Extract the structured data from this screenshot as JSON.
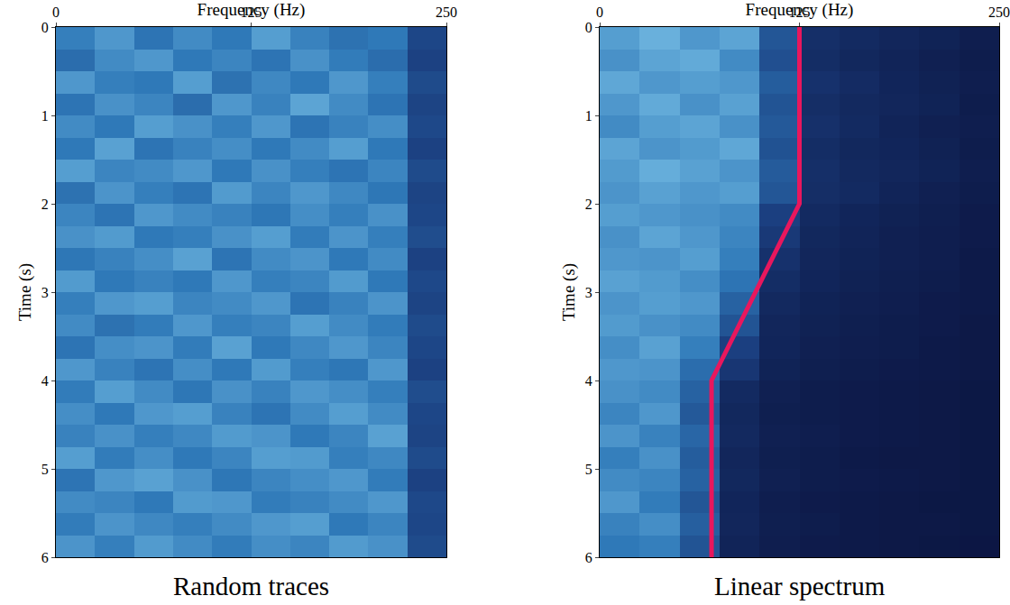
{
  "chart_data": [
    {
      "type": "heatmap",
      "caption": "Random traces",
      "x_label": "Frequency (Hz)",
      "y_label": "Time (s)",
      "xlim": [
        0,
        250
      ],
      "xticks": [
        0,
        125,
        250
      ],
      "ylim": [
        6,
        0
      ],
      "yticks": [
        0,
        1,
        2,
        3,
        4,
        5,
        6
      ],
      "grid": false,
      "zlim": [
        0,
        1
      ],
      "x": [
        12.5,
        37.5,
        62.5,
        87.5,
        112.5,
        137.5,
        162.5,
        187.5,
        212.5,
        237.5
      ],
      "y": [
        0.125,
        0.375,
        0.625,
        0.875,
        1.125,
        1.375,
        1.625,
        1.875,
        2.125,
        2.375,
        2.625,
        2.875,
        3.125,
        3.375,
        3.625,
        3.875,
        4.125,
        4.375,
        4.625,
        4.875,
        5.125,
        5.375,
        5.625,
        5.875
      ],
      "z": [
        [
          0.62,
          0.7,
          0.58,
          0.66,
          0.6,
          0.72,
          0.63,
          0.57,
          0.6,
          0.38
        ],
        [
          0.55,
          0.66,
          0.7,
          0.6,
          0.64,
          0.58,
          0.68,
          0.61,
          0.55,
          0.36
        ],
        [
          0.7,
          0.62,
          0.6,
          0.72,
          0.57,
          0.65,
          0.6,
          0.7,
          0.62,
          0.4
        ],
        [
          0.58,
          0.68,
          0.64,
          0.55,
          0.7,
          0.63,
          0.74,
          0.66,
          0.58,
          0.37
        ],
        [
          0.66,
          0.6,
          0.72,
          0.68,
          0.62,
          0.7,
          0.58,
          0.63,
          0.67,
          0.39
        ],
        [
          0.6,
          0.73,
          0.58,
          0.63,
          0.67,
          0.6,
          0.66,
          0.72,
          0.6,
          0.36
        ],
        [
          0.72,
          0.64,
          0.66,
          0.7,
          0.6,
          0.68,
          0.62,
          0.58,
          0.64,
          0.4
        ],
        [
          0.57,
          0.69,
          0.62,
          0.58,
          0.71,
          0.64,
          0.7,
          0.65,
          0.59,
          0.37
        ],
        [
          0.64,
          0.58,
          0.7,
          0.66,
          0.63,
          0.59,
          0.67,
          0.62,
          0.68,
          0.38
        ],
        [
          0.68,
          0.71,
          0.6,
          0.62,
          0.68,
          0.72,
          0.61,
          0.69,
          0.62,
          0.41
        ],
        [
          0.59,
          0.63,
          0.67,
          0.73,
          0.58,
          0.66,
          0.69,
          0.6,
          0.66,
          0.36
        ],
        [
          0.71,
          0.6,
          0.63,
          0.6,
          0.7,
          0.62,
          0.64,
          0.71,
          0.6,
          0.39
        ],
        [
          0.62,
          0.7,
          0.72,
          0.64,
          0.66,
          0.7,
          0.58,
          0.63,
          0.69,
          0.37
        ],
        [
          0.66,
          0.57,
          0.61,
          0.7,
          0.62,
          0.64,
          0.72,
          0.66,
          0.61,
          0.4
        ],
        [
          0.58,
          0.67,
          0.69,
          0.61,
          0.73,
          0.6,
          0.65,
          0.7,
          0.64,
          0.38
        ],
        [
          0.7,
          0.63,
          0.58,
          0.67,
          0.6,
          0.71,
          0.62,
          0.59,
          0.7,
          0.36
        ],
        [
          0.61,
          0.72,
          0.66,
          0.59,
          0.68,
          0.63,
          0.7,
          0.67,
          0.62,
          0.41
        ],
        [
          0.67,
          0.6,
          0.7,
          0.72,
          0.63,
          0.58,
          0.66,
          0.72,
          0.66,
          0.38
        ],
        [
          0.63,
          0.68,
          0.62,
          0.65,
          0.71,
          0.69,
          0.6,
          0.64,
          0.73,
          0.37
        ],
        [
          0.72,
          0.61,
          0.67,
          0.6,
          0.64,
          0.72,
          0.71,
          0.62,
          0.65,
          0.4
        ],
        [
          0.58,
          0.7,
          0.73,
          0.68,
          0.59,
          0.64,
          0.67,
          0.7,
          0.61,
          0.36
        ],
        [
          0.66,
          0.64,
          0.6,
          0.71,
          0.7,
          0.61,
          0.63,
          0.66,
          0.7,
          0.39
        ],
        [
          0.61,
          0.69,
          0.65,
          0.62,
          0.66,
          0.7,
          0.72,
          0.6,
          0.64,
          0.38
        ],
        [
          0.69,
          0.62,
          0.71,
          0.66,
          0.61,
          0.67,
          0.64,
          0.71,
          0.68,
          0.4
        ]
      ]
    },
    {
      "type": "heatmap",
      "caption": "Linear spectrum",
      "x_label": "Frequency (Hz)",
      "y_label": "Time (s)",
      "xlim": [
        0,
        250
      ],
      "xticks": [
        0,
        125,
        250
      ],
      "ylim": [
        6,
        0
      ],
      "yticks": [
        0,
        1,
        2,
        3,
        4,
        5,
        6
      ],
      "grid": false,
      "zlim": [
        0,
        1
      ],
      "x": [
        12.5,
        37.5,
        62.5,
        87.5,
        112.5,
        137.5,
        162.5,
        187.5,
        212.5,
        237.5
      ],
      "y": [
        0.125,
        0.375,
        0.625,
        0.875,
        1.125,
        1.375,
        1.625,
        1.875,
        2.125,
        2.375,
        2.625,
        2.875,
        3.125,
        3.375,
        3.625,
        3.875,
        4.125,
        4.375,
        4.625,
        4.875,
        5.125,
        5.375,
        5.625,
        5.875
      ],
      "z": [
        [
          0.72,
          0.78,
          0.7,
          0.74,
          0.45,
          0.22,
          0.18,
          0.15,
          0.12,
          0.08
        ],
        [
          0.68,
          0.74,
          0.76,
          0.66,
          0.42,
          0.2,
          0.16,
          0.13,
          0.1,
          0.07
        ],
        [
          0.75,
          0.7,
          0.72,
          0.7,
          0.48,
          0.24,
          0.19,
          0.14,
          0.11,
          0.08
        ],
        [
          0.7,
          0.76,
          0.68,
          0.73,
          0.44,
          0.21,
          0.17,
          0.15,
          0.12,
          0.07
        ],
        [
          0.66,
          0.72,
          0.74,
          0.68,
          0.46,
          0.23,
          0.18,
          0.13,
          0.1,
          0.08
        ],
        [
          0.74,
          0.69,
          0.71,
          0.75,
          0.43,
          0.2,
          0.16,
          0.14,
          0.11,
          0.07
        ],
        [
          0.71,
          0.77,
          0.73,
          0.69,
          0.47,
          0.22,
          0.17,
          0.15,
          0.12,
          0.08
        ],
        [
          0.69,
          0.73,
          0.7,
          0.72,
          0.45,
          0.21,
          0.18,
          0.13,
          0.1,
          0.07
        ],
        [
          0.72,
          0.7,
          0.68,
          0.66,
          0.35,
          0.18,
          0.14,
          0.11,
          0.09,
          0.06
        ],
        [
          0.68,
          0.74,
          0.7,
          0.64,
          0.3,
          0.16,
          0.13,
          0.1,
          0.08,
          0.06
        ],
        [
          0.7,
          0.69,
          0.72,
          0.62,
          0.24,
          0.15,
          0.12,
          0.1,
          0.08,
          0.05
        ],
        [
          0.73,
          0.71,
          0.67,
          0.58,
          0.2,
          0.14,
          0.11,
          0.09,
          0.07,
          0.05
        ],
        [
          0.69,
          0.72,
          0.7,
          0.5,
          0.17,
          0.12,
          0.1,
          0.08,
          0.06,
          0.05
        ],
        [
          0.71,
          0.68,
          0.66,
          0.44,
          0.15,
          0.11,
          0.09,
          0.07,
          0.06,
          0.04
        ],
        [
          0.67,
          0.73,
          0.62,
          0.35,
          0.14,
          0.1,
          0.08,
          0.07,
          0.05,
          0.04
        ],
        [
          0.7,
          0.69,
          0.55,
          0.28,
          0.12,
          0.09,
          0.07,
          0.06,
          0.05,
          0.04
        ],
        [
          0.68,
          0.66,
          0.5,
          0.18,
          0.1,
          0.07,
          0.06,
          0.05,
          0.04,
          0.03
        ],
        [
          0.64,
          0.7,
          0.46,
          0.16,
          0.09,
          0.07,
          0.06,
          0.05,
          0.04,
          0.03
        ],
        [
          0.69,
          0.63,
          0.52,
          0.17,
          0.1,
          0.08,
          0.06,
          0.05,
          0.04,
          0.03
        ],
        [
          0.62,
          0.68,
          0.48,
          0.15,
          0.09,
          0.07,
          0.05,
          0.04,
          0.04,
          0.03
        ],
        [
          0.66,
          0.64,
          0.5,
          0.16,
          0.1,
          0.07,
          0.06,
          0.05,
          0.04,
          0.03
        ],
        [
          0.7,
          0.61,
          0.45,
          0.14,
          0.08,
          0.06,
          0.05,
          0.04,
          0.03,
          0.03
        ],
        [
          0.63,
          0.67,
          0.49,
          0.15,
          0.09,
          0.07,
          0.05,
          0.04,
          0.04,
          0.03
        ],
        [
          0.6,
          0.62,
          0.44,
          0.13,
          0.08,
          0.06,
          0.05,
          0.04,
          0.03,
          0.02
        ]
      ],
      "series": [
        {
          "type": "line",
          "color": "#e8175d",
          "x": [
            125,
            125,
            70,
            70
          ],
          "y": [
            0,
            2,
            4,
            6
          ]
        }
      ]
    }
  ]
}
